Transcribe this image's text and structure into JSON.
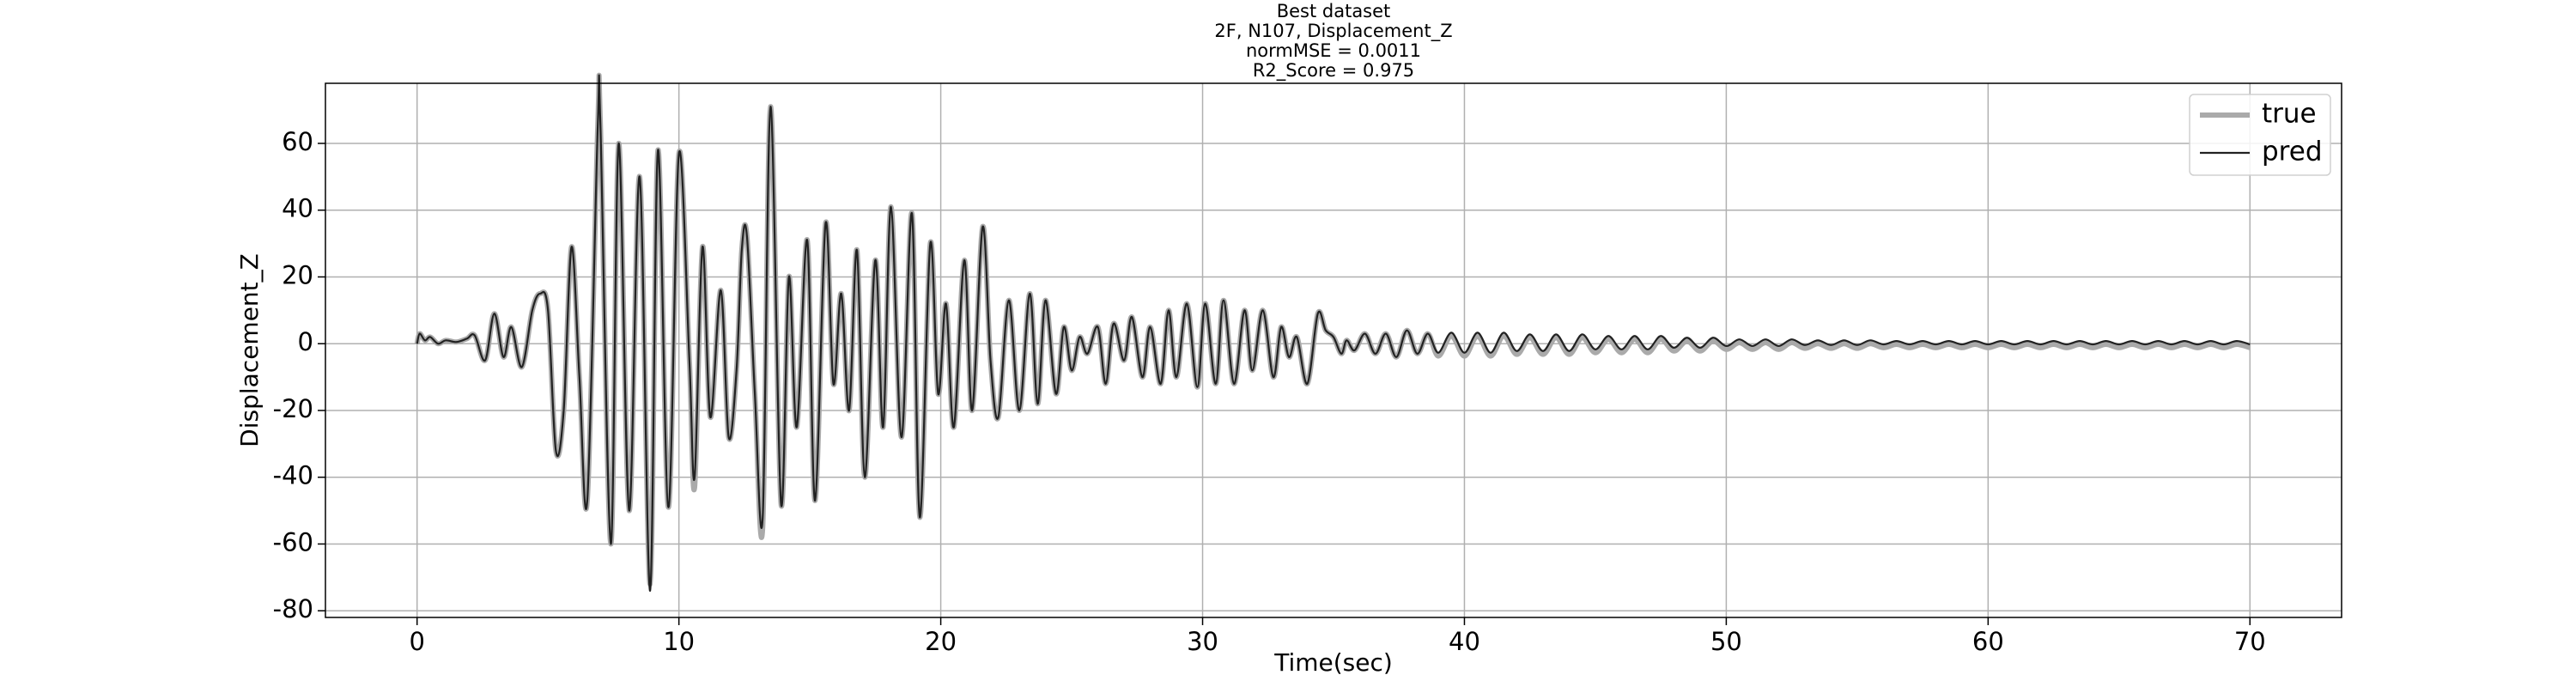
{
  "chart_data": {
    "type": "line",
    "title": "Best dataset",
    "subtitle": [
      "2F, N107, Displacement_Z",
      "normMSE = 0.0011",
      "R2_Score = 0.975"
    ],
    "xlabel": "Time(sec)",
    "ylabel": "Displacement_Z",
    "xlim": [
      -3.5,
      73.5
    ],
    "ylim": [
      -82,
      78
    ],
    "xticks": [
      0,
      10,
      20,
      30,
      40,
      50,
      60,
      70
    ],
    "yticks": [
      -80,
      -60,
      -40,
      -20,
      0,
      20,
      40,
      60
    ],
    "grid": true,
    "legend": "upper right",
    "x": [
      0,
      0.1,
      0.3,
      0.5,
      0.8,
      1.1,
      1.5,
      1.9,
      2.2,
      2.6,
      2.95,
      3.3,
      3.6,
      4.0,
      4.4,
      4.7,
      5.0,
      5.3,
      5.6,
      5.9,
      6.2,
      6.5,
      6.9,
      7.0,
      7.4,
      7.7,
      8.1,
      8.5,
      8.9,
      9.2,
      9.6,
      10.0,
      10.4,
      10.6,
      10.9,
      11.2,
      11.6,
      11.9,
      12.2,
      12.4,
      12.6,
      12.9,
      13.2,
      13.5,
      13.9,
      14.2,
      14.5,
      14.9,
      15.2,
      15.6,
      15.9,
      16.2,
      16.5,
      16.8,
      17.1,
      17.5,
      17.8,
      18.1,
      18.5,
      18.9,
      19.2,
      19.6,
      19.9,
      20.2,
      20.5,
      20.9,
      21.2,
      21.6,
      21.9,
      22.2,
      22.6,
      23.0,
      23.4,
      23.7,
      24.0,
      24.4,
      24.7,
      25.0,
      25.3,
      25.6,
      26.0,
      26.3,
      26.6,
      27.0,
      27.3,
      27.7,
      28.0,
      28.4,
      28.7,
      29.0,
      29.4,
      29.8,
      30.1,
      30.5,
      30.8,
      31.2,
      31.6,
      31.9,
      32.3,
      32.7,
      33.0,
      33.3,
      33.6,
      34.0,
      34.4,
      34.7,
      35.0,
      35.3,
      35.5,
      35.8,
      36.2,
      36.6,
      37.0,
      37.4,
      37.8,
      38.2,
      38.6,
      39,
      39.5,
      40,
      40.5,
      41,
      41.5,
      42,
      42.5,
      43,
      43.5,
      44,
      44.5,
      45,
      45.5,
      46,
      46.5,
      47,
      47.5,
      48,
      48.5,
      49,
      49.5,
      50,
      50.5,
      51,
      51.5,
      52,
      52.5,
      53,
      53.5,
      54,
      54.5,
      55,
      55.5,
      56,
      56.5,
      57,
      57.5,
      58,
      58.5,
      59,
      59.5,
      60,
      60.5,
      61,
      61.5,
      62,
      62.5,
      63,
      63.5,
      64,
      64.5,
      65,
      65.5,
      66,
      66.5,
      67,
      67.5,
      68,
      68.5,
      69,
      69.5,
      70
    ],
    "series": [
      {
        "name": "true",
        "color": "#aaaaaa",
        "values": [
          0,
          3,
          1,
          2,
          0,
          1,
          0.5,
          1.5,
          2.5,
          -5,
          9,
          -4,
          5,
          -7,
          10,
          15,
          10,
          -32,
          -20,
          29,
          -10,
          -47,
          65,
          66,
          -60,
          60,
          -50,
          50,
          -72,
          58,
          -49,
          57,
          -5,
          -43,
          29,
          -22,
          16,
          -28,
          -8,
          28,
          32,
          -15,
          -55,
          71,
          -48,
          20,
          -25,
          31,
          -47,
          36,
          -12,
          15,
          -20,
          28,
          -40,
          25,
          -25,
          41,
          -28,
          39,
          -52,
          30,
          -15,
          12,
          -25,
          25,
          -20,
          35,
          -5,
          -22,
          13,
          -20,
          15,
          -18,
          13,
          -15,
          5,
          -8,
          2,
          -3,
          5,
          -12,
          6,
          -5,
          8,
          -10,
          5,
          -12,
          10,
          -10,
          12,
          -13,
          12,
          -12,
          13,
          -12,
          10,
          -8,
          10,
          -10,
          5,
          -4,
          2,
          -12,
          9,
          4,
          2,
          -3,
          1,
          -2,
          3,
          -3,
          3,
          -4,
          4,
          -3,
          3,
          -3.7,
          2.3,
          -3.7,
          2.3,
          -3.7,
          2.3,
          -3.2,
          1.8,
          -3.2,
          1.8,
          -3.2,
          1.8,
          -2.7,
          1.3,
          -2.7,
          1.3,
          -2.7,
          1.3,
          -2.2,
          0.8,
          -2.2,
          0.8,
          -1.7,
          0.3,
          -1.7,
          0.3,
          -1.7,
          0.3,
          -1.4,
          0,
          -1.4,
          0,
          -1.4,
          0,
          -1.2,
          -0.2,
          -1.2,
          -0.2,
          -1.2,
          -0.2,
          -1.2,
          -0.2,
          -1.2,
          -0.2,
          -1.2,
          -0.2,
          -1.2,
          -0.2,
          -1.2,
          -0.2,
          -1.2,
          -0.2,
          -1.2,
          -0.2,
          -1.2,
          -0.2,
          -1.2,
          -0.2,
          -1.2,
          -0.2,
          -1.2,
          -0.2,
          -1.2
        ]
      },
      {
        "name": "pred",
        "color": "#222222",
        "values": [
          0,
          3,
          1,
          2,
          0,
          1,
          0.5,
          1.5,
          2.5,
          -5,
          9,
          -4,
          5,
          -7,
          10,
          15,
          10,
          -32,
          -20,
          29,
          -10,
          -47,
          65,
          66,
          -60,
          60,
          -50,
          50,
          -74,
          58,
          -49,
          57,
          -5,
          -40,
          29,
          -22,
          16,
          -28,
          -8,
          28,
          32,
          -15,
          -52,
          71,
          -48,
          20,
          -25,
          31,
          -47,
          36,
          -12,
          15,
          -20,
          28,
          -40,
          25,
          -25,
          41,
          -28,
          39,
          -52,
          30,
          -15,
          12,
          -25,
          25,
          -20,
          35,
          -5,
          -22,
          13,
          -20,
          15,
          -18,
          13,
          -15,
          5,
          -8,
          2,
          -3,
          5,
          -12,
          6,
          -5,
          8,
          -10,
          5,
          -12,
          10,
          -10,
          12,
          -13,
          12,
          -12,
          13,
          -12,
          10,
          -8,
          10,
          -10,
          5,
          -4,
          2,
          -12,
          9,
          4,
          2,
          -3,
          1,
          -2,
          3,
          -3,
          3,
          -4,
          4,
          -3,
          3,
          -2.7,
          3.3,
          -2.7,
          3.3,
          -2.7,
          3.3,
          -2.2,
          2.8,
          -2.2,
          2.8,
          -2.2,
          2.8,
          -1.7,
          2.3,
          -1.7,
          2.3,
          -1.7,
          2.3,
          -1.2,
          1.8,
          -1.2,
          1.8,
          -0.7,
          1.3,
          -0.7,
          1.3,
          -0.7,
          1.3,
          -0.4,
          1,
          -0.4,
          1,
          -0.4,
          1,
          -0.2,
          0.8,
          -0.2,
          0.8,
          -0.2,
          0.8,
          -0.2,
          0.8,
          -0.2,
          0.8,
          -0.2,
          0.8,
          -0.2,
          0.8,
          -0.2,
          0.8,
          -0.2,
          0.8,
          -0.2,
          0.8,
          -0.2,
          0.8,
          -0.2,
          0.8,
          -0.2,
          0.8,
          -0.2,
          0.8,
          -0.2
        ]
      }
    ]
  }
}
